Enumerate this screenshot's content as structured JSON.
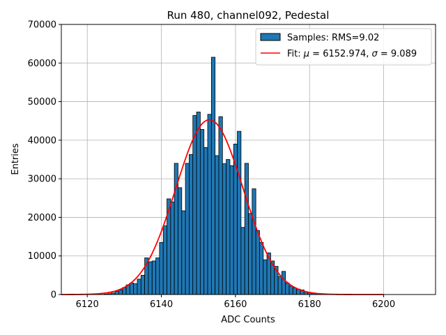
{
  "chart_data": {
    "type": "histogram",
    "title": "Run 480, channel092, Pedestal",
    "xlabel": "ADC Counts",
    "ylabel": "Entries",
    "xlim": [
      6113,
      6214
    ],
    "ylim": [
      0,
      70000
    ],
    "xticks": [
      6120,
      6140,
      6160,
      6180,
      6200
    ],
    "yticks": [
      0,
      10000,
      20000,
      30000,
      40000,
      50000,
      60000,
      70000
    ],
    "grid": true,
    "legend_position": "top-right",
    "colors": {
      "bar_fill": "#1f77b4",
      "bar_edge": "#000000",
      "fit_line": "#ff0000",
      "grid": "#b0b0b0"
    },
    "histogram": {
      "name": "Samples: RMS=9.02",
      "bin_width": 1,
      "bins": [
        [
          6125,
          100
        ],
        [
          6126,
          200
        ],
        [
          6127,
          400
        ],
        [
          6128,
          800
        ],
        [
          6129,
          1200
        ],
        [
          6130,
          1800
        ],
        [
          6131,
          2500
        ],
        [
          6132,
          3000
        ],
        [
          6133,
          2800
        ],
        [
          6134,
          4000
        ],
        [
          6135,
          5000
        ],
        [
          6136,
          9500
        ],
        [
          6137,
          8500
        ],
        [
          6138,
          8700
        ],
        [
          6139,
          9500
        ],
        [
          6140,
          13500
        ],
        [
          6141,
          17800
        ],
        [
          6142,
          24800
        ],
        [
          6143,
          24000
        ],
        [
          6144,
          34000
        ],
        [
          6145,
          27700
        ],
        [
          6146,
          21700
        ],
        [
          6147,
          34000
        ],
        [
          6148,
          36300
        ],
        [
          6149,
          46400
        ],
        [
          6150,
          47300
        ],
        [
          6151,
          42800
        ],
        [
          6152,
          38100
        ],
        [
          6153,
          46700
        ],
        [
          6154,
          61500
        ],
        [
          6155,
          36000
        ],
        [
          6156,
          46100
        ],
        [
          6157,
          33900
        ],
        [
          6158,
          35000
        ],
        [
          6159,
          33400
        ],
        [
          6160,
          39000
        ],
        [
          6161,
          42300
        ],
        [
          6162,
          17400
        ],
        [
          6163,
          34000
        ],
        [
          6164,
          21000
        ],
        [
          6165,
          27400
        ],
        [
          6166,
          16600
        ],
        [
          6167,
          13500
        ],
        [
          6168,
          9000
        ],
        [
          6169,
          10800
        ],
        [
          6170,
          8700
        ],
        [
          6171,
          7300
        ],
        [
          6172,
          4700
        ],
        [
          6173,
          6000
        ],
        [
          6174,
          3000
        ],
        [
          6175,
          2200
        ],
        [
          6176,
          1700
        ],
        [
          6177,
          1400
        ],
        [
          6178,
          1200
        ],
        [
          6179,
          700
        ],
        [
          6180,
          500
        ],
        [
          6181,
          300
        ],
        [
          6182,
          100
        ]
      ]
    },
    "fit": {
      "name": "Fit: μ = 6152.974, σ = 9.089",
      "label_prefix": "Fit: ",
      "mu_symbol": "μ",
      "mu_text": " = 6152.974, ",
      "sigma_symbol": "σ",
      "sigma_text": " = 9.089",
      "mu": 6152.974,
      "sigma": 9.089,
      "amplitude": 45300,
      "x_range": [
        6113,
        6200
      ]
    }
  }
}
